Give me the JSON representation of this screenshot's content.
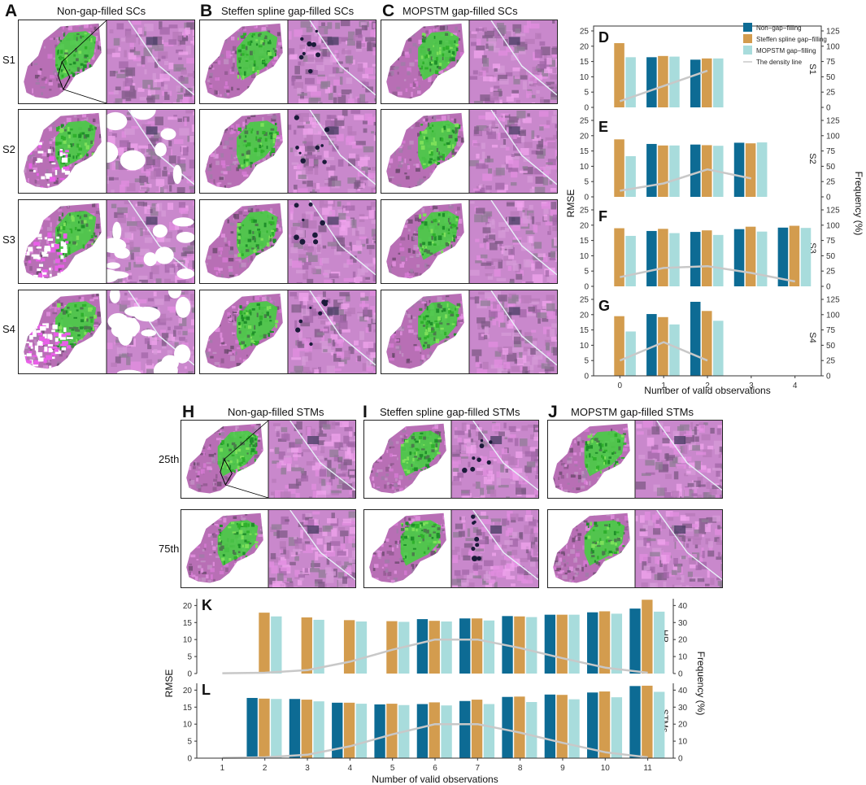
{
  "panel_letters": {
    "A": "A",
    "B": "B",
    "C": "C",
    "D": "D",
    "E": "E",
    "F": "F",
    "G": "G",
    "H": "H",
    "I": "I",
    "J": "J",
    "K": "K",
    "L": "L"
  },
  "top_titles": {
    "A": "Non-gap-filled SCs",
    "B": "Steffen spline gap-filled SCs",
    "C": "MOPSTM gap-filled SCs"
  },
  "top_rows": [
    "S1",
    "S2",
    "S3",
    "S4"
  ],
  "bottom_titles": {
    "H": "Non-gap-filled STMs",
    "I": "Steffen spline gap-filled STMs",
    "J": "MOPSTM gap-filled STMs"
  },
  "bottom_rows": [
    "25th",
    "75th"
  ],
  "colors": {
    "non": "#0d6b94",
    "steffen": "#d39c4e",
    "mopstm": "#a8dcdc",
    "density": "#c8c8c8"
  },
  "chart_data": [
    {
      "id": "top",
      "type": "bar",
      "panels": [
        "D",
        "E",
        "F",
        "G"
      ],
      "scenarios": [
        "S1",
        "S2",
        "S3",
        "S4"
      ],
      "xlabel": "Number of valid observations",
      "ylabel": "RMSE",
      "ylabel_right": "Frequency (%)",
      "x": [
        0,
        1,
        2,
        3,
        4
      ],
      "ylim": [
        0,
        25
      ],
      "yticks": [
        0,
        5,
        10,
        15,
        20,
        25
      ],
      "ylim_right": [
        0,
        125
      ],
      "yticks_right": [
        0,
        25,
        50,
        75,
        100,
        125
      ],
      "legend": [
        "Non−gap−filling",
        "Steffen spline gap−filling",
        "MOPSTM gap−filling",
        "The density line"
      ],
      "series_names": [
        "Non-gap-filling",
        "Steffen spline gap-filling",
        "MOPSTM gap-filling"
      ],
      "data": {
        "S1": {
          "non": [
            null,
            16.4,
            15.6
          ],
          "steffen": [
            21.0,
            16.8,
            16.0
          ],
          "mopstm": [
            16.4,
            16.6,
            16.0
          ],
          "density": [
            10,
            35,
            60
          ]
        },
        "S2": {
          "non": [
            null,
            17.3,
            17.1,
            17.7
          ],
          "steffen": [
            18.8,
            16.8,
            16.9,
            17.5
          ],
          "mopstm": [
            13.3,
            16.8,
            16.7,
            17.8
          ],
          "density": [
            10,
            22,
            45,
            30
          ]
        },
        "S3": {
          "non": [
            null,
            18.1,
            17.8,
            18.7,
            19.2
          ],
          "steffen": [
            19.0,
            18.8,
            18.3,
            19.5,
            19.8
          ],
          "mopstm": [
            16.5,
            17.4,
            16.8,
            17.9,
            19.1
          ],
          "density": [
            15,
            30,
            33,
            22,
            8
          ]
        },
        "S4": {
          "non": [
            null,
            20.2,
            24.2
          ],
          "steffen": [
            19.5,
            19.2,
            21.2
          ],
          "mopstm": [
            14.5,
            16.8,
            18.0
          ],
          "density": [
            25,
            55,
            25
          ]
        }
      }
    },
    {
      "id": "bottom",
      "type": "bar",
      "panels": [
        "K",
        "L"
      ],
      "scenarios": [
        "HR",
        "STMs"
      ],
      "xlabel": "Number of valid observations",
      "ylabel": "RMSE",
      "ylabel_right": "Frequency (%)",
      "x": [
        1,
        2,
        3,
        4,
        5,
        6,
        7,
        8,
        9,
        10,
        11
      ],
      "ylim": [
        0,
        22
      ],
      "yticks": [
        0,
        5,
        10,
        15,
        20
      ],
      "ylim_right": [
        0,
        44
      ],
      "yticks_right": [
        0,
        10,
        20,
        30,
        40
      ],
      "data": {
        "HR": {
          "non": [
            null,
            null,
            null,
            null,
            null,
            16.0,
            16.2,
            16.9,
            17.3,
            18.0,
            19.1
          ],
          "steffen": [
            null,
            17.9,
            16.5,
            15.7,
            15.4,
            15.5,
            16.2,
            16.8,
            17.3,
            18.3,
            21.7
          ],
          "mopstm": [
            null,
            16.8,
            15.8,
            15.3,
            15.2,
            15.3,
            15.6,
            16.6,
            17.3,
            17.6,
            18.2
          ],
          "density": [
            0.2,
            0.5,
            2,
            7,
            14,
            20,
            20,
            15,
            9,
            3.5,
            0.5
          ]
        },
        "STMs": {
          "non": [
            null,
            17.7,
            17.4,
            16.3,
            15.8,
            15.9,
            16.8,
            18.0,
            18.7,
            19.3,
            21.2
          ],
          "steffen": [
            null,
            17.5,
            17.2,
            16.3,
            16.0,
            16.4,
            17.2,
            18.1,
            18.6,
            19.6,
            21.3
          ],
          "mopstm": [
            null,
            17.4,
            16.7,
            16.0,
            15.6,
            15.5,
            15.9,
            16.5,
            17.3,
            17.9,
            19.5
          ],
          "density": [
            0.2,
            0.5,
            2,
            7,
            14,
            20,
            20,
            15,
            9,
            3.5,
            0.5
          ]
        }
      }
    }
  ]
}
